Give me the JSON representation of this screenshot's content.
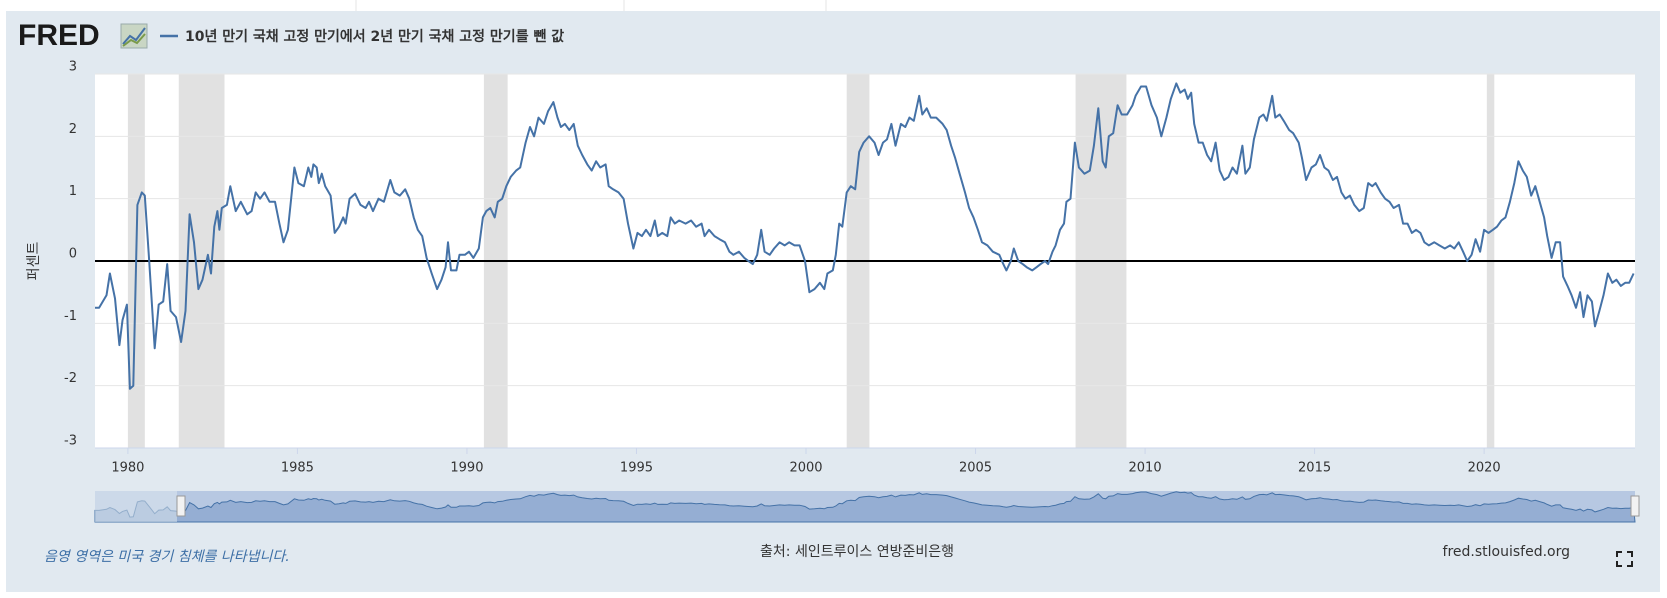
{
  "chart_data": {
    "type": "line",
    "brand": "FRED",
    "ylabel": "퍼센트",
    "note": "음영 영역은 미국 경기 침체를 나타냅니다.",
    "source": "출처: 세인트루이스 연방준비은행",
    "url": "fred.stlouisfed.org",
    "xlim": [
      1979.03,
      2024.45
    ],
    "ylim": [
      -3,
      3
    ],
    "xticks": [
      1980,
      1985,
      1990,
      1995,
      2000,
      2005,
      2010,
      2015,
      2020
    ],
    "yticks": [
      -3,
      -2,
      -1,
      0,
      1,
      2,
      3
    ],
    "grid": true,
    "recession_color": "#e1e1e1",
    "recessions": [
      [
        1980.0,
        1980.5
      ],
      [
        1981.5,
        1982.85
      ],
      [
        1990.5,
        1991.2
      ],
      [
        2001.2,
        2001.87
      ],
      [
        2007.95,
        2009.45
      ],
      [
        2020.08,
        2020.3
      ]
    ],
    "x": [
      1979.03,
      1979.15,
      1979.37,
      1979.47,
      1979.62,
      1979.75,
      1979.84,
      1979.97,
      1980.06,
      1980.16,
      1980.28,
      1980.41,
      1980.5,
      1980.63,
      1980.79,
      1980.91,
      1981.04,
      1981.16,
      1981.26,
      1981.42,
      1981.57,
      1981.7,
      1981.82,
      1981.95,
      1982.08,
      1982.2,
      1982.36,
      1982.45,
      1982.55,
      1982.64,
      1982.7,
      1982.77,
      1982.92,
      1983.02,
      1983.18,
      1983.33,
      1983.52,
      1983.65,
      1983.77,
      1983.9,
      1984.03,
      1984.18,
      1984.34,
      1984.47,
      1984.59,
      1984.72,
      1984.91,
      1985.03,
      1985.19,
      1985.32,
      1985.41,
      1985.47,
      1985.57,
      1985.63,
      1985.72,
      1985.82,
      1985.98,
      1986.1,
      1986.23,
      1986.35,
      1986.42,
      1986.54,
      1986.7,
      1986.86,
      1987.01,
      1987.11,
      1987.23,
      1987.39,
      1987.55,
      1987.74,
      1987.86,
      1988.02,
      1988.18,
      1988.3,
      1988.43,
      1988.55,
      1988.68,
      1988.81,
      1988.96,
      1989.12,
      1989.25,
      1989.37,
      1989.44,
      1989.53,
      1989.69,
      1989.78,
      1989.94,
      1990.06,
      1990.19,
      1990.35,
      1990.47,
      1990.57,
      1990.69,
      1990.82,
      1990.91,
      1991.04,
      1991.16,
      1991.29,
      1991.45,
      1991.57,
      1991.73,
      1991.86,
      1991.98,
      1992.11,
      1992.27,
      1992.39,
      1992.55,
      1992.67,
      1992.77,
      1992.89,
      1993.02,
      1993.15,
      1993.27,
      1993.4,
      1993.55,
      1993.68,
      1993.81,
      1993.93,
      1994.09,
      1994.18,
      1994.31,
      1994.47,
      1994.62,
      1994.75,
      1994.91,
      1995.03,
      1995.16,
      1995.28,
      1995.41,
      1995.54,
      1995.63,
      1995.76,
      1995.91,
      1996.01,
      1996.13,
      1996.26,
      1996.45,
      1996.61,
      1996.76,
      1996.92,
      1997.01,
      1997.14,
      1997.3,
      1997.45,
      1997.61,
      1997.74,
      1997.86,
      1998.02,
      1998.18,
      1998.3,
      1998.43,
      1998.56,
      1998.68,
      1998.78,
      1998.93,
      1999.06,
      1999.22,
      1999.37,
      1999.5,
      1999.66,
      1999.81,
      1999.97,
      2000.1,
      2000.25,
      2000.41,
      2000.54,
      2000.63,
      2000.79,
      2000.88,
      2000.98,
      2001.07,
      2001.2,
      2001.32,
      2001.45,
      2001.57,
      2001.7,
      2001.86,
      2002.02,
      2002.14,
      2002.27,
      2002.39,
      2002.52,
      2002.64,
      2002.8,
      2002.93,
      2003.05,
      2003.18,
      2003.34,
      2003.43,
      2003.56,
      2003.68,
      2003.84,
      2004.03,
      2004.15,
      2004.28,
      2004.4,
      2004.53,
      2004.69,
      2004.81,
      2004.94,
      2005.07,
      2005.19,
      2005.35,
      2005.51,
      2005.7,
      2005.82,
      2005.91,
      2006.04,
      2006.13,
      2006.26,
      2006.39,
      2006.51,
      2006.67,
      2006.8,
      2006.92,
      2007.05,
      2007.14,
      2007.27,
      2007.36,
      2007.49,
      2007.61,
      2007.68,
      2007.8,
      2007.93,
      2008.05,
      2008.21,
      2008.37,
      2008.49,
      2008.62,
      2008.75,
      2008.84,
      2008.93,
      2009.06,
      2009.19,
      2009.31,
      2009.47,
      2009.63,
      2009.72,
      2009.88,
      2010.03,
      2010.19,
      2010.35,
      2010.48,
      2010.63,
      2010.76,
      2010.92,
      2011.04,
      2011.17,
      2011.26,
      2011.36,
      2011.45,
      2011.58,
      2011.7,
      2011.83,
      2011.95,
      2012.08,
      2012.2,
      2012.33,
      2012.46,
      2012.58,
      2012.71,
      2012.87,
      2012.96,
      2013.09,
      2013.21,
      2013.37,
      2013.49,
      2013.59,
      2013.75,
      2013.84,
      2013.97,
      2014.09,
      2014.25,
      2014.37,
      2014.53,
      2014.63,
      2014.75,
      2014.91,
      2015.04,
      2015.16,
      2015.29,
      2015.41,
      2015.54,
      2015.66,
      2015.79,
      2015.91,
      2016.04,
      2016.17,
      2016.32,
      2016.45,
      2016.58,
      2016.7,
      2016.8,
      2016.95,
      2017.08,
      2017.21,
      2017.33,
      2017.49,
      2017.61,
      2017.74,
      2017.87,
      2017.99,
      2018.12,
      2018.24,
      2018.37,
      2018.53,
      2018.68,
      2018.84,
      2019.0,
      2019.12,
      2019.25,
      2019.38,
      2019.5,
      2019.63,
      2019.75,
      2019.88,
      2020.0,
      2020.13,
      2020.26,
      2020.38,
      2020.51,
      2020.63,
      2020.76,
      2020.89,
      2021.01,
      2021.14,
      2021.26,
      2021.39,
      2021.51,
      2021.64,
      2021.77,
      2021.86,
      2021.99,
      2022.11,
      2022.24,
      2022.33,
      2022.46,
      2022.58,
      2022.71,
      2022.83,
      2022.93,
      2023.05,
      2023.18,
      2023.27,
      2023.4,
      2023.52,
      2023.65,
      2023.78,
      2023.9,
      2024.03,
      2024.16,
      2024.28,
      2024.41
    ],
    "series": [
      {
        "name": "10년 만기 국채 고정 만기에서 2년 만기 국채 고정 만기를 뺀 값",
        "color": "#4572a7",
        "values": [
          -0.75,
          -0.75,
          -0.55,
          -0.2,
          -0.6,
          -1.35,
          -0.95,
          -0.7,
          -2.05,
          -2.0,
          0.9,
          1.1,
          1.05,
          0.0,
          -1.4,
          -0.7,
          -0.65,
          -0.05,
          -0.8,
          -0.9,
          -1.3,
          -0.8,
          0.75,
          0.3,
          -0.45,
          -0.3,
          0.1,
          -0.2,
          0.55,
          0.8,
          0.5,
          0.85,
          0.9,
          1.2,
          0.8,
          0.95,
          0.75,
          0.8,
          1.1,
          1.0,
          1.1,
          0.95,
          0.95,
          0.6,
          0.3,
          0.5,
          1.5,
          1.25,
          1.2,
          1.5,
          1.35,
          1.55,
          1.5,
          1.25,
          1.4,
          1.2,
          1.05,
          0.45,
          0.55,
          0.7,
          0.6,
          1.0,
          1.08,
          0.9,
          0.85,
          0.95,
          0.8,
          1.0,
          0.95,
          1.3,
          1.1,
          1.05,
          1.15,
          1.0,
          0.7,
          0.5,
          0.4,
          0.05,
          -0.2,
          -0.45,
          -0.3,
          -0.1,
          0.3,
          -0.15,
          -0.15,
          0.1,
          0.1,
          0.15,
          0.05,
          0.2,
          0.7,
          0.8,
          0.85,
          0.7,
          0.95,
          1.0,
          1.2,
          1.35,
          1.45,
          1.5,
          1.9,
          2.15,
          2.0,
          2.3,
          2.2,
          2.4,
          2.55,
          2.3,
          2.15,
          2.2,
          2.1,
          2.2,
          1.85,
          1.7,
          1.55,
          1.45,
          1.6,
          1.5,
          1.55,
          1.2,
          1.15,
          1.1,
          1.0,
          0.6,
          0.2,
          0.45,
          0.4,
          0.5,
          0.4,
          0.65,
          0.4,
          0.45,
          0.4,
          0.7,
          0.6,
          0.65,
          0.6,
          0.65,
          0.55,
          0.6,
          0.4,
          0.5,
          0.4,
          0.35,
          0.3,
          0.15,
          0.1,
          0.15,
          0.05,
          0.0,
          -0.05,
          0.1,
          0.5,
          0.15,
          0.1,
          0.2,
          0.3,
          0.25,
          0.3,
          0.25,
          0.25,
          0.0,
          -0.5,
          -0.45,
          -0.35,
          -0.45,
          -0.2,
          -0.15,
          0.1,
          0.6,
          0.55,
          1.1,
          1.2,
          1.15,
          1.75,
          1.9,
          2.0,
          1.9,
          1.7,
          1.9,
          1.95,
          2.2,
          1.85,
          2.2,
          2.15,
          2.3,
          2.25,
          2.65,
          2.35,
          2.45,
          2.3,
          2.3,
          2.2,
          2.1,
          1.85,
          1.65,
          1.4,
          1.1,
          0.85,
          0.7,
          0.5,
          0.3,
          0.25,
          0.15,
          0.1,
          -0.05,
          -0.15,
          0.0,
          0.2,
          0.0,
          -0.05,
          -0.1,
          -0.15,
          -0.1,
          -0.05,
          0.0,
          -0.05,
          0.15,
          0.25,
          0.5,
          0.6,
          0.95,
          1.0,
          1.9,
          1.5,
          1.4,
          1.45,
          1.85,
          2.45,
          1.6,
          1.5,
          2.0,
          2.05,
          2.5,
          2.35,
          2.35,
          2.5,
          2.65,
          2.8,
          2.8,
          2.5,
          2.3,
          2.0,
          2.3,
          2.6,
          2.85,
          2.7,
          2.75,
          2.6,
          2.7,
          2.2,
          1.9,
          1.9,
          1.7,
          1.6,
          1.9,
          1.45,
          1.3,
          1.35,
          1.5,
          1.4,
          1.85,
          1.4,
          1.5,
          1.95,
          2.3,
          2.35,
          2.25,
          2.65,
          2.3,
          2.35,
          2.25,
          2.1,
          2.05,
          1.9,
          1.65,
          1.3,
          1.5,
          1.55,
          1.7,
          1.5,
          1.45,
          1.3,
          1.35,
          1.1,
          1.0,
          1.05,
          0.9,
          0.8,
          0.85,
          1.25,
          1.2,
          1.25,
          1.1,
          1.0,
          0.95,
          0.85,
          0.9,
          0.6,
          0.6,
          0.45,
          0.5,
          0.45,
          0.3,
          0.25,
          0.3,
          0.25,
          0.2,
          0.25,
          0.2,
          0.3,
          0.15,
          0.0,
          0.1,
          0.35,
          0.15,
          0.5,
          0.45,
          0.5,
          0.55,
          0.65,
          0.7,
          0.95,
          1.25,
          1.6,
          1.45,
          1.35,
          1.05,
          1.2,
          0.95,
          0.7,
          0.4,
          0.05,
          0.3,
          0.3,
          -0.25,
          -0.4,
          -0.55,
          -0.75,
          -0.5,
          -0.9,
          -0.55,
          -0.65,
          -1.05,
          -0.8,
          -0.55,
          -0.2,
          -0.35,
          -0.3,
          -0.4,
          -0.35,
          -0.35,
          -0.2
        ]
      }
    ]
  }
}
